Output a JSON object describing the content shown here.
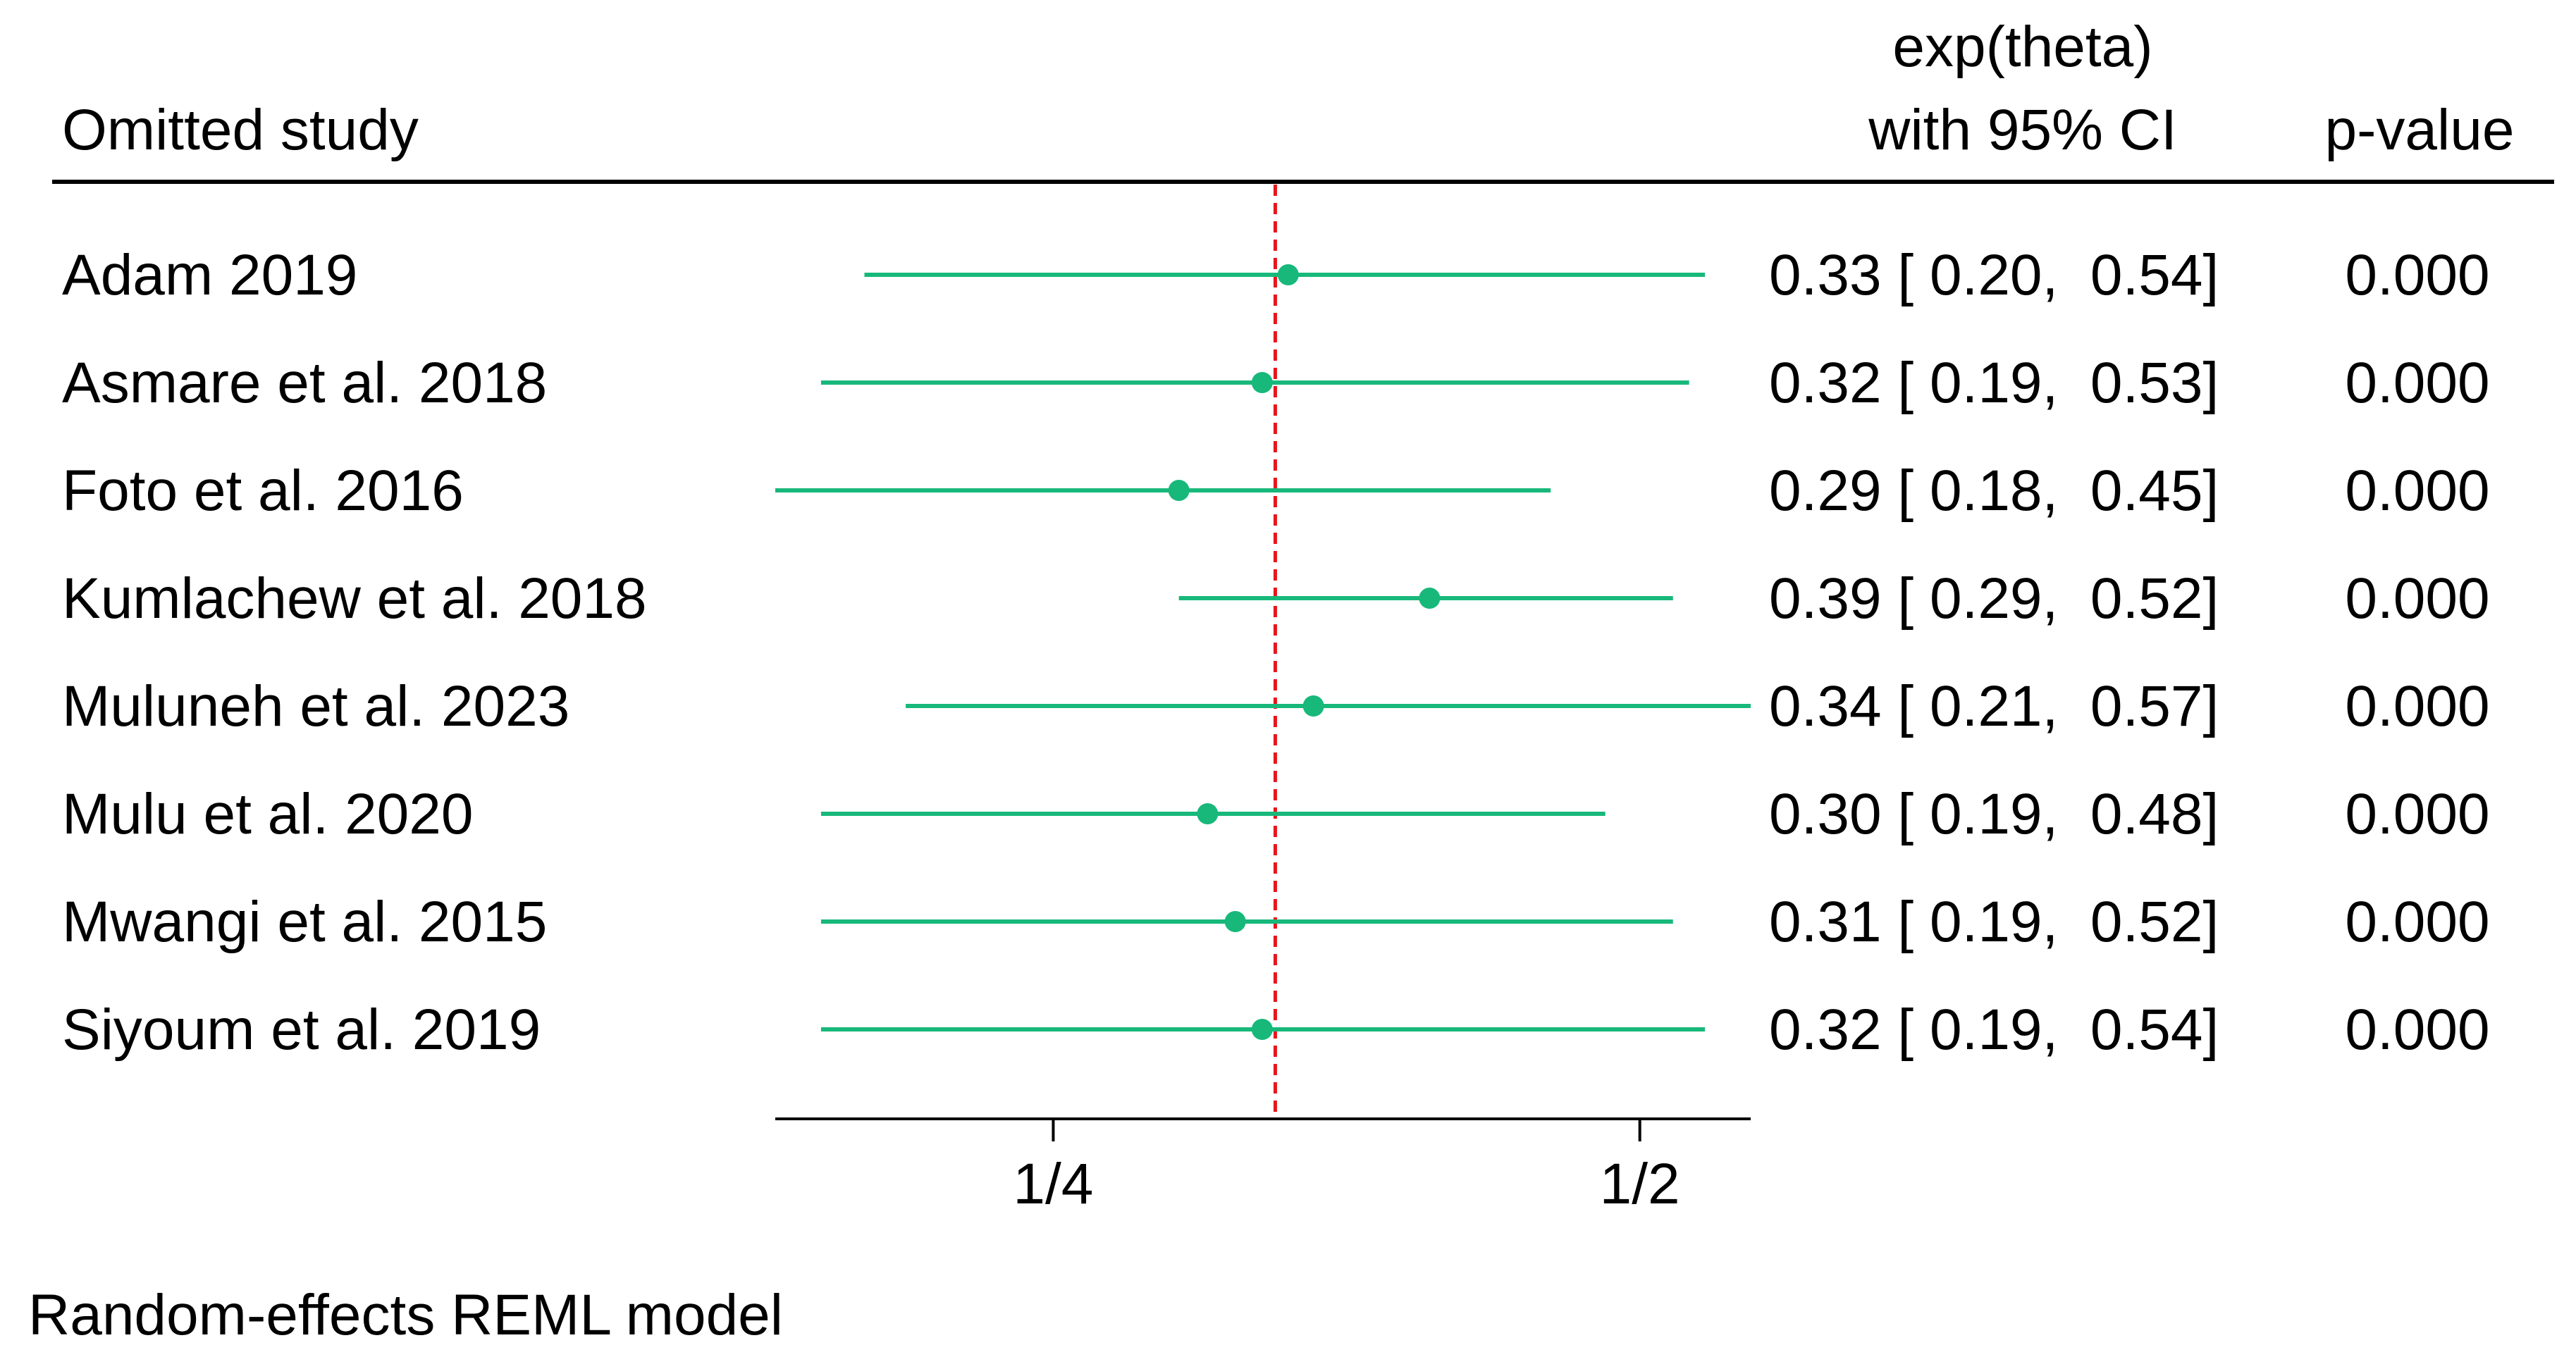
{
  "chart_data": {
    "type": "forest",
    "title": "",
    "header": {
      "study_label": "Omitted study",
      "effect_label_line1": "exp(theta)",
      "effect_label_line2": "with 95% CI",
      "p_label": "p-value"
    },
    "x_scale": "log",
    "xlim": [
      0.18,
      0.57
    ],
    "x_ticks": [
      {
        "value": 0.25,
        "label": "1/4"
      },
      {
        "value": 0.5,
        "label": "1/2"
      }
    ],
    "overall_estimate": 0.325,
    "studies": [
      {
        "name": "Adam 2019",
        "estimate": 0.33,
        "lower": 0.2,
        "upper": 0.54,
        "ci_text": "0.33 [ 0.20,  0.54]",
        "p_text": "0.000"
      },
      {
        "name": "Asmare et al. 2018",
        "estimate": 0.32,
        "lower": 0.19,
        "upper": 0.53,
        "ci_text": "0.32 [ 0.19,  0.53]",
        "p_text": "0.000"
      },
      {
        "name": "Foto et al. 2016",
        "estimate": 0.29,
        "lower": 0.18,
        "upper": 0.45,
        "ci_text": "0.29 [ 0.18,  0.45]",
        "p_text": "0.000"
      },
      {
        "name": "Kumlachew et al. 2018",
        "estimate": 0.39,
        "lower": 0.29,
        "upper": 0.52,
        "ci_text": "0.39 [ 0.29,  0.52]",
        "p_text": "0.000"
      },
      {
        "name": "Muluneh et al. 2023",
        "estimate": 0.34,
        "lower": 0.21,
        "upper": 0.57,
        "ci_text": "0.34 [ 0.21,  0.57]",
        "p_text": "0.000"
      },
      {
        "name": "Mulu et al. 2020",
        "estimate": 0.3,
        "lower": 0.19,
        "upper": 0.48,
        "ci_text": "0.30 [ 0.19,  0.48]",
        "p_text": "0.000"
      },
      {
        "name": "Mwangi et al. 2015",
        "estimate": 0.31,
        "lower": 0.19,
        "upper": 0.52,
        "ci_text": "0.31 [ 0.19,  0.52]",
        "p_text": "0.000"
      },
      {
        "name": "Siyoum et al. 2019",
        "estimate": 0.32,
        "lower": 0.19,
        "upper": 0.54,
        "ci_text": "0.32 [ 0.19,  0.54]",
        "p_text": "0.000"
      }
    ],
    "footnote": "Random-effects REML model",
    "colors": {
      "ci_line": "#18b87a",
      "marker": "#18b87a",
      "reference_line": "#e8151b",
      "text": "#000000",
      "rule": "#000000"
    }
  }
}
